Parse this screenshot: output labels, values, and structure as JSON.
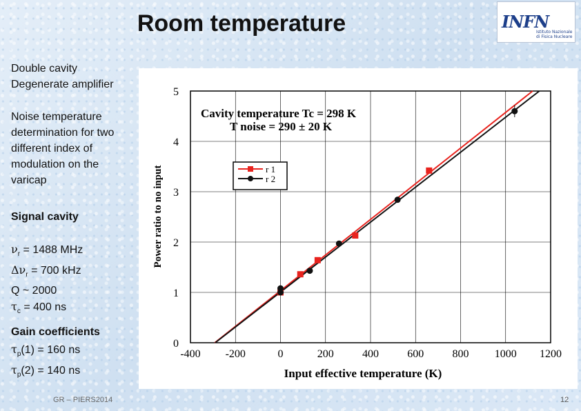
{
  "slide": {
    "title": "Room temperature",
    "logo_text": "INFN",
    "logo_subtitle": "Istituto Nazionale di Fisica Nucleare",
    "left_text": {
      "line1": "Double cavity",
      "line2": "Degenerate amplifier",
      "noise_lines": [
        "Noise temperature",
        "determination for two",
        "different index of",
        "modulation on the",
        "varicap"
      ],
      "signal_heading": "Signal cavity",
      "param_nu": "= 1488 MHz",
      "param_dnu": "= 700 kHz",
      "param_q": "Q ~ 2000",
      "param_tau": "= 400 ns",
      "gain_heading": "Gain coefficients",
      "gain1": "(1) = 160 ns",
      "gain2": "(2) = 140 ns"
    },
    "footer_left": "GR – PIERS2014",
    "page_number": "12"
  },
  "chart_data": {
    "type": "scatter",
    "title": "Cavity temperature Tc = 298 K",
    "subtitle": "T noise = 290 ± 20 K",
    "xlabel": "Input effective temperature (K)",
    "ylabel": "Power ratio to no input",
    "xlim": [
      -400,
      1200
    ],
    "ylim": [
      0,
      5
    ],
    "xticks": [
      -400,
      -200,
      0,
      200,
      400,
      600,
      800,
      1000,
      1200
    ],
    "yticks": [
      0,
      1,
      2,
      3,
      4,
      5
    ],
    "grid": true,
    "legend_position": "upper-left",
    "series": [
      {
        "name": "r 1",
        "color": "#e8231e",
        "marker": "square",
        "points": [
          [
            0,
            1.0
          ],
          [
            88,
            1.36
          ],
          [
            165,
            1.64
          ],
          [
            332,
            2.13
          ],
          [
            660,
            3.42
          ]
        ],
        "errors": [
          0.02,
          0.02,
          0.02,
          0.03,
          0.06
        ],
        "fit": [
          [
            -292,
            0.0
          ],
          [
            1120,
            5.0
          ]
        ]
      },
      {
        "name": "r 2",
        "color": "#111111",
        "marker": "circle",
        "points": [
          [
            0,
            1.0
          ],
          [
            0,
            1.08
          ],
          [
            130,
            1.43
          ],
          [
            260,
            1.97
          ],
          [
            520,
            2.84
          ],
          [
            1040,
            4.6
          ]
        ],
        "errors": [
          0.02,
          0.02,
          0.02,
          0.03,
          0.06,
          0.12
        ],
        "fit": [
          [
            -290,
            0.0
          ],
          [
            1150,
            5.0
          ]
        ]
      }
    ]
  }
}
